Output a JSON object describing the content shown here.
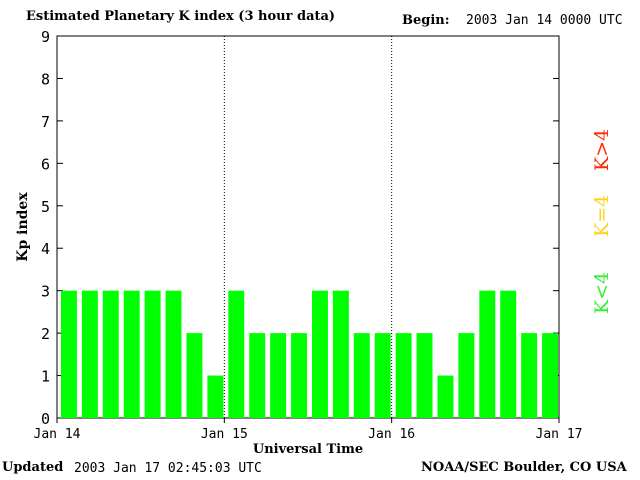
{
  "header": {
    "title": "Estimated Planetary K index (3 hour data)",
    "begin_label": "Begin:",
    "begin_value": "2003 Jan 14 0000 UTC"
  },
  "footer": {
    "updated_label": "Updated",
    "updated_value": "2003 Jan 17 02:45:03 UTC",
    "credit": "NOAA/SEC Boulder, CO USA"
  },
  "legend": {
    "gt4": {
      "label": "K>4",
      "color": "#ff2a00"
    },
    "eq4": {
      "label": "K=4",
      "color": "#ffd21a"
    },
    "lt4": {
      "label": "K<4",
      "color": "#33ee33"
    }
  },
  "chart_data": {
    "type": "bar",
    "xlabel": "Universal Time",
    "ylabel": "Kp index",
    "ylim": [
      0,
      9
    ],
    "yticks": [
      "0",
      "1",
      "2",
      "3",
      "4",
      "5",
      "6",
      "7",
      "8",
      "9"
    ],
    "xtick_labels": [
      "Jan 14",
      "Jan 15",
      "Jan 16",
      "Jan 17"
    ],
    "day_dividers": [
      "Jan 15",
      "Jan 16"
    ],
    "bar_color": "#00ff00",
    "values": [
      3,
      3,
      3,
      3,
      3,
      3,
      2,
      1,
      3,
      2,
      2,
      2,
      3,
      3,
      2,
      2,
      2,
      2,
      1,
      2,
      3,
      3,
      2,
      2
    ]
  }
}
